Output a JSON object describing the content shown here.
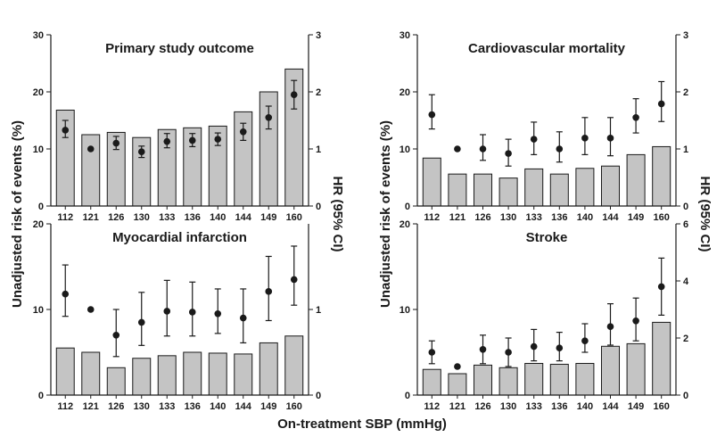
{
  "labels": {
    "y_left": "Unadjusted risk of events (%)",
    "y_right": "HR (95% CI)",
    "x": "On-treatment SBP (mmHg)"
  },
  "chart_data": [
    {
      "type": "bar",
      "title": "Primary study outcome",
      "categories": [
        "112",
        "121",
        "126",
        "130",
        "133",
        "136",
        "140",
        "144",
        "149",
        "160"
      ],
      "ylim_left": [
        0,
        30
      ],
      "yticks_left": [
        0,
        10,
        20,
        30
      ],
      "ylim_right": [
        0,
        3
      ],
      "yticks_right": [
        0,
        1,
        2,
        3
      ],
      "show_xticks": true,
      "series": [
        {
          "name": "Unadjusted risk of events (%)",
          "axis": "left",
          "values": [
            16.8,
            12.5,
            12.9,
            12.0,
            13.4,
            13.7,
            14.0,
            16.5,
            20.0,
            24.0
          ]
        },
        {
          "name": "HR (95% CI)",
          "axis": "right",
          "type": "point-errorbar",
          "values": [
            1.33,
            1.0,
            1.1,
            0.95,
            1.13,
            1.15,
            1.17,
            1.3,
            1.55,
            1.95
          ],
          "ci_low": [
            1.2,
            null,
            0.99,
            0.85,
            1.02,
            1.04,
            1.06,
            1.15,
            1.35,
            1.7
          ],
          "ci_high": [
            1.5,
            null,
            1.22,
            1.05,
            1.27,
            1.27,
            1.28,
            1.45,
            1.75,
            2.2
          ]
        }
      ]
    },
    {
      "type": "bar",
      "title": "Cardiovascular mortality",
      "categories": [
        "112",
        "121",
        "126",
        "130",
        "133",
        "136",
        "140",
        "144",
        "149",
        "160"
      ],
      "ylim_left": [
        0,
        30
      ],
      "yticks_left": [
        0,
        10,
        20,
        30
      ],
      "ylim_right": [
        0,
        3
      ],
      "yticks_right": [
        0,
        1,
        2,
        3
      ],
      "show_xticks": true,
      "series": [
        {
          "name": "Unadjusted risk of events (%)",
          "axis": "left",
          "values": [
            8.4,
            5.6,
            5.6,
            4.9,
            6.5,
            5.6,
            6.6,
            7.0,
            9.0,
            10.4
          ]
        },
        {
          "name": "HR (95% CI)",
          "axis": "right",
          "type": "point-errorbar",
          "values": [
            1.6,
            1.0,
            1.0,
            0.92,
            1.17,
            1.0,
            1.19,
            1.19,
            1.55,
            1.79
          ],
          "ci_low": [
            1.35,
            null,
            0.8,
            0.7,
            0.9,
            0.77,
            0.9,
            0.88,
            1.28,
            1.48
          ],
          "ci_high": [
            1.95,
            null,
            1.25,
            1.17,
            1.47,
            1.3,
            1.55,
            1.55,
            1.88,
            2.18
          ]
        }
      ]
    },
    {
      "type": "bar",
      "title": "Myocardial infarction",
      "categories": [
        "112",
        "121",
        "126",
        "130",
        "133",
        "136",
        "140",
        "144",
        "149",
        "160"
      ],
      "ylim_left": [
        0,
        20
      ],
      "yticks_left": [
        0,
        10,
        20
      ],
      "ylim_right": [
        0,
        2
      ],
      "yticks_right": [
        0,
        1
      ],
      "show_xticks": false,
      "series": [
        {
          "name": "Unadjusted risk of events (%)",
          "axis": "left",
          "values": [
            5.5,
            5.0,
            3.2,
            4.3,
            4.6,
            5.0,
            4.9,
            4.8,
            6.1,
            6.9
          ]
        },
        {
          "name": "HR (95% CI)",
          "axis": "right",
          "type": "point-errorbar",
          "values": [
            1.18,
            1.0,
            0.7,
            0.85,
            0.98,
            0.97,
            0.95,
            0.9,
            1.21,
            1.35
          ],
          "ci_low": [
            0.92,
            null,
            0.45,
            0.58,
            0.69,
            0.69,
            0.72,
            0.61,
            0.87,
            1.05
          ],
          "ci_high": [
            1.52,
            null,
            1.0,
            1.2,
            1.34,
            1.32,
            1.24,
            1.24,
            1.62,
            1.74
          ]
        }
      ]
    },
    {
      "type": "bar",
      "title": "Stroke",
      "categories": [
        "112",
        "121",
        "126",
        "130",
        "133",
        "136",
        "140",
        "144",
        "149",
        "160"
      ],
      "ylim_left": [
        0,
        20
      ],
      "yticks_left": [
        0,
        10,
        20
      ],
      "ylim_right": [
        0,
        6
      ],
      "yticks_right": [
        0,
        2,
        4,
        6
      ],
      "show_xticks": false,
      "series": [
        {
          "name": "Unadjusted risk of events (%)",
          "axis": "left",
          "values": [
            3.0,
            2.5,
            3.5,
            3.2,
            3.7,
            3.6,
            3.7,
            5.7,
            6.0,
            8.5
          ]
        },
        {
          "name": "HR (95% CI)",
          "axis": "right",
          "type": "point-errorbar",
          "values": [
            1.5,
            1.0,
            1.6,
            1.5,
            1.7,
            1.65,
            1.9,
            2.4,
            2.6,
            3.8
          ],
          "ci_low": [
            1.1,
            null,
            1.1,
            1.0,
            1.2,
            1.2,
            1.5,
            1.75,
            1.9,
            2.8
          ],
          "ci_high": [
            1.9,
            null,
            2.1,
            2.0,
            2.3,
            2.2,
            2.5,
            3.2,
            3.4,
            4.8
          ]
        }
      ]
    }
  ]
}
